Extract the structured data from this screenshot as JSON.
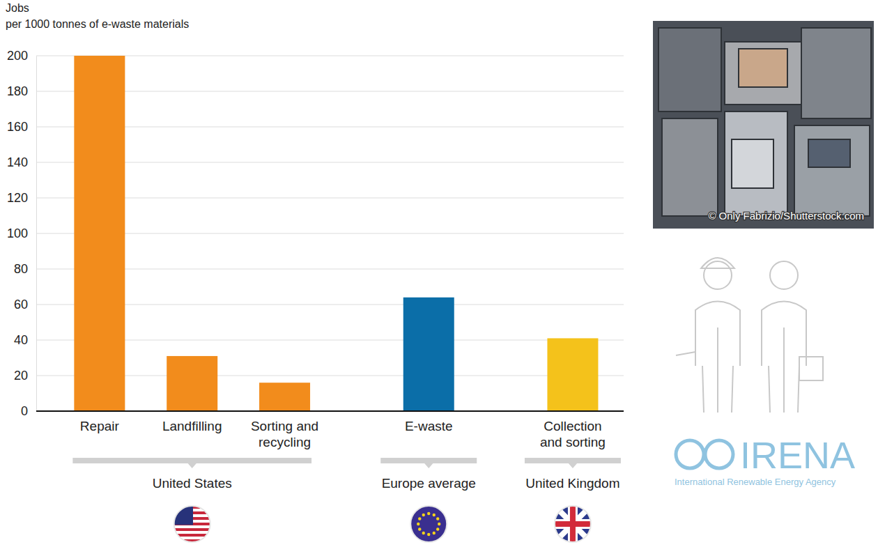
{
  "chart_data": {
    "type": "bar",
    "title": "Jobs",
    "subtitle": "per 1000 tonnes of e-waste materials",
    "categories": [
      "Repair",
      "Landfilling",
      "Sorting and recycling",
      "E-waste",
      "Collection and sorting"
    ],
    "values": [
      200,
      31,
      16,
      64,
      41
    ],
    "colors": [
      "#f28c1c",
      "#f28c1c",
      "#f28c1c",
      "#0b6ea8",
      "#f4c21b"
    ],
    "group_labels": [
      "United States",
      "United States",
      "United States",
      "Europe average",
      "United Kingdom"
    ],
    "ylim": [
      0,
      200
    ],
    "yticks": [
      0,
      20,
      40,
      60,
      80,
      100,
      120,
      140,
      160,
      180,
      200
    ],
    "grid": true,
    "annotations": {
      "photo_credit": "© Only Fabrizio/Shutterstock.com",
      "logo": "IRENA",
      "logo_subtitle": "International Renewable Energy Agency"
    }
  }
}
